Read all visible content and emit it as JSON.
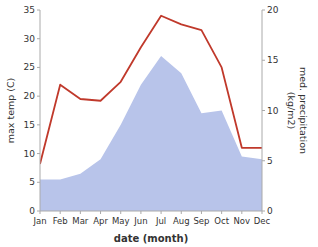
{
  "chart_data": {
    "type": "line",
    "categories": [
      "Jan",
      "Feb",
      "Mar",
      "Apr",
      "May",
      "Jun",
      "Jul",
      "Aug",
      "Sep",
      "Oct",
      "Nov",
      "Dec"
    ],
    "series": [
      {
        "type": "area",
        "color": "#b8c4ea",
        "values": [
          5.5,
          5.5,
          6.5,
          9.0,
          15.0,
          22.0,
          27.0,
          24.0,
          17.0,
          17.5,
          9.5,
          9.0
        ]
      },
      {
        "type": "line",
        "color": "#c0392b",
        "values": [
          8.2,
          22.0,
          19.5,
          19.2,
          22.5,
          28.5,
          34.0,
          32.5,
          31.5,
          25.0,
          11.0,
          11.0
        ]
      }
    ],
    "x_label": "date (month)",
    "y_label": "max temp (C)",
    "y2_label": "med. precipitation\n(kg/m2)",
    "ylim": [
      0,
      35
    ],
    "yticks": [
      0,
      5,
      10,
      15,
      20,
      25,
      30,
      35
    ],
    "y2lim": [
      0,
      20
    ],
    "y2ticks": [
      0,
      5,
      10,
      15,
      20
    ],
    "grid": false
  }
}
